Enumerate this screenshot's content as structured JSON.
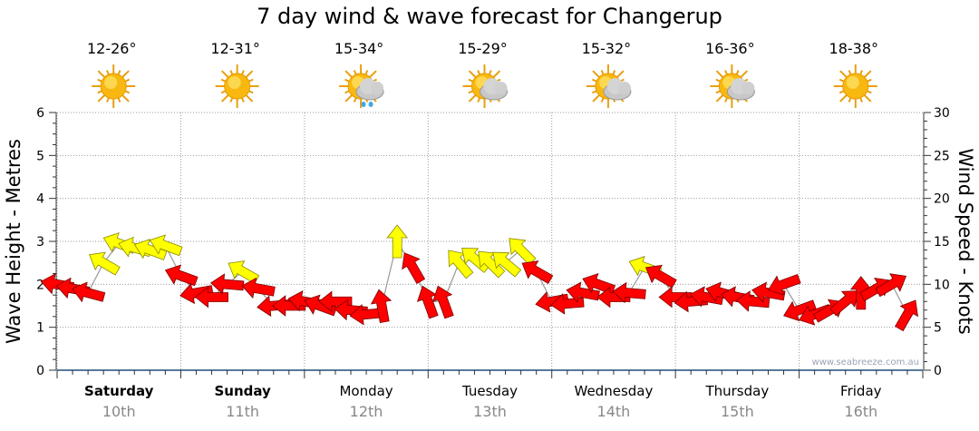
{
  "title": "7 day wind & wave forecast for Changerup",
  "watermark": "www.seabreeze.com.au",
  "days": [
    {
      "name": "Saturday",
      "date": "10th",
      "temp": "12-26°",
      "icon": "sun-icon",
      "bold": true
    },
    {
      "name": "Sunday",
      "date": "11th",
      "temp": "12-31°",
      "icon": "sun-icon",
      "bold": true
    },
    {
      "name": "Monday",
      "date": "12th",
      "temp": "15-34°",
      "icon": "sun-cloud-rain-icon",
      "bold": false
    },
    {
      "name": "Tuesday",
      "date": "13th",
      "temp": "15-29°",
      "icon": "sun-cloud-icon",
      "bold": false
    },
    {
      "name": "Wednesday",
      "date": "14th",
      "temp": "15-32°",
      "icon": "sun-cloud-icon",
      "bold": false
    },
    {
      "name": "Thursday",
      "date": "15th",
      "temp": "16-36°",
      "icon": "sun-cloud-icon",
      "bold": false
    },
    {
      "name": "Friday",
      "date": "16th",
      "temp": "18-38°",
      "icon": "sun-icon",
      "bold": false
    }
  ],
  "chart_data": {
    "type": "line",
    "title": "7 day wind & wave forecast for Changerup",
    "ylabel": "Wave Height - Metres",
    "y2label": "Wind Speed - Knots",
    "ylim": [
      0,
      6
    ],
    "y2lim": [
      0,
      30
    ],
    "yticks": [
      0,
      1,
      2,
      3,
      4,
      5,
      6
    ],
    "y2ticks": [
      0,
      5,
      10,
      15,
      20,
      25,
      30
    ],
    "interval_hours": 3,
    "colors": {
      "r": "#ff0000",
      "y": "#ffff00",
      "line": "#999999",
      "axis": "#1f4e79"
    },
    "wave_height": [
      2.0,
      1.9,
      1.8,
      2.5,
      2.95,
      2.85,
      2.8,
      2.9,
      2.2,
      1.8,
      1.7,
      2.0,
      2.3,
      1.9,
      1.5,
      1.5,
      1.6,
      1.5,
      1.6,
      1.4,
      1.3,
      1.5,
      3.0,
      2.4,
      1.6,
      1.6,
      2.5,
      2.6,
      2.5,
      2.5,
      2.8,
      2.3,
      1.6,
      1.55,
      1.8,
      2.0,
      1.7,
      1.8,
      2.4,
      2.2,
      1.7,
      1.6,
      1.7,
      1.8,
      1.7,
      1.6,
      1.8,
      2.0,
      1.4,
      1.3,
      1.4,
      1.6,
      1.8,
      1.9,
      2.0,
      1.3
    ],
    "wind_color": [
      "r",
      "r",
      "r",
      "y",
      "y",
      "y",
      "y",
      "y",
      "r",
      "r",
      "r",
      "r",
      "y",
      "r",
      "r",
      "r",
      "r",
      "r",
      "r",
      "r",
      "r",
      "r",
      "y",
      "r",
      "r",
      "r",
      "y",
      "y",
      "y",
      "y",
      "y",
      "r",
      "r",
      "r",
      "r",
      "r",
      "r",
      "r",
      "y",
      "r",
      "r",
      "r",
      "r",
      "r",
      "r",
      "r",
      "r",
      "r",
      "r",
      "r",
      "r",
      "r",
      "r",
      "r",
      "r",
      "r"
    ],
    "wind_heading_deg": [
      170,
      170,
      165,
      150,
      160,
      165,
      160,
      160,
      160,
      190,
      180,
      175,
      150,
      170,
      185,
      180,
      170,
      160,
      180,
      175,
      185,
      100,
      90,
      120,
      110,
      110,
      130,
      140,
      135,
      140,
      135,
      150,
      190,
      185,
      170,
      160,
      180,
      175,
      160,
      150,
      180,
      185,
      170,
      165,
      170,
      175,
      170,
      200,
      200,
      200,
      30,
      40,
      90,
      30,
      30,
      60
    ]
  }
}
